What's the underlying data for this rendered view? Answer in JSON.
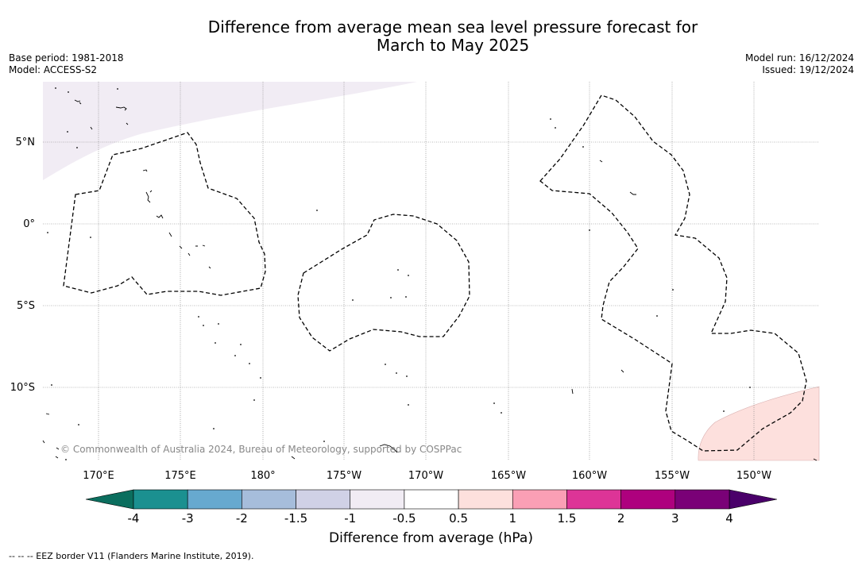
{
  "header": {
    "title_line1": "Difference from average mean sea level pressure forecast for",
    "title_line2": "March to May 2025",
    "base_period": "Base period: 1981-2018",
    "model": "Model: ACCESS-S2",
    "model_run": "Model run: 16/12/2024",
    "issued": "Issued: 19/12/2024"
  },
  "map": {
    "longitude_labels": [
      "170°E",
      "175°E",
      "180°",
      "175°W",
      "170°W",
      "165°W",
      "160°W",
      "155°W",
      "150°W"
    ],
    "latitude_labels": [
      "5°N",
      "0°",
      "5°S",
      "10°S"
    ],
    "copyright": "© Commonwealth of Australia 2024, Bureau of Meteorology, supported by COSPPac",
    "shaded_regions": [
      {
        "location": "north-west corner",
        "category": "-1 to -0.5",
        "color": "#f1ecf4"
      },
      {
        "location": "south-east corner",
        "category": "0.5 to 1",
        "color": "#fde0dd"
      }
    ]
  },
  "colorbar": {
    "tick_labels": [
      "-4",
      "-3",
      "-2",
      "-1.5",
      "-1",
      "-0.5",
      "0.5",
      "1",
      "1.5",
      "2",
      "3",
      "4"
    ],
    "colors": [
      "#1b9090",
      "#67a9cf",
      "#a6bddb",
      "#d0d1e6",
      "#f1ecf4",
      "#ffffff",
      "#fde0dd",
      "#fa9fb5",
      "#dd3497",
      "#ae017e",
      "#7a0177"
    ],
    "extend_low_color": "#0b6e5e",
    "extend_high_color": "#4a006a",
    "title": "Difference from average (hPa)"
  },
  "footnote": "--  --  -- EEZ border V11 (Flanders Marine Institute, 2019)."
}
